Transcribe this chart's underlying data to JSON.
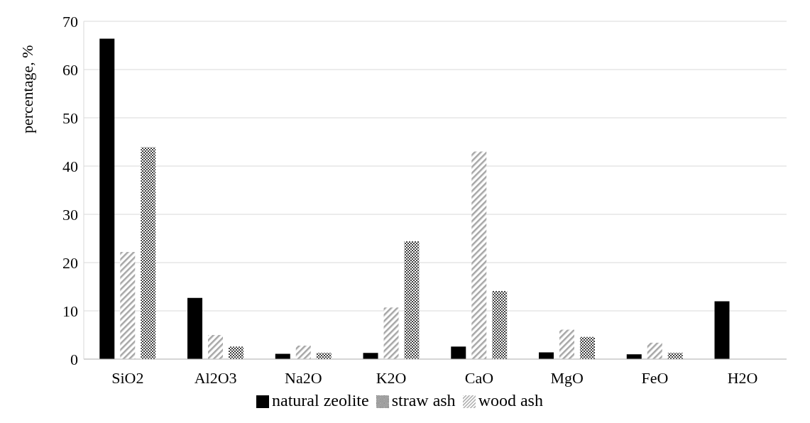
{
  "chart_data": {
    "type": "bar",
    "ylabel": "percentage, %",
    "categories": [
      "SiO2",
      "Al2O3",
      "Na2O",
      "K2O",
      "CaO",
      "MgO",
      "FeO",
      "H2O"
    ],
    "series": [
      {
        "name": "natural  zeolite",
        "color": "#000000",
        "values": [
          66.4,
          12.7,
          1.1,
          1.3,
          2.6,
          1.4,
          1.0,
          12.0
        ]
      },
      {
        "name": "wood ash",
        "color": "#a6a6a6",
        "values": [
          22.2,
          5.0,
          2.8,
          10.7,
          43.0,
          6.1,
          3.4,
          null
        ]
      },
      {
        "name": "straw ash",
        "color": "#404040",
        "values": [
          43.9,
          2.6,
          1.3,
          24.4,
          14.1,
          4.6,
          1.3,
          null
        ]
      }
    ],
    "ylim": [
      0,
      70
    ],
    "yticks": [
      0,
      10,
      20,
      30,
      40,
      50,
      60,
      70
    ],
    "grid": "y",
    "legend": "bottom"
  }
}
